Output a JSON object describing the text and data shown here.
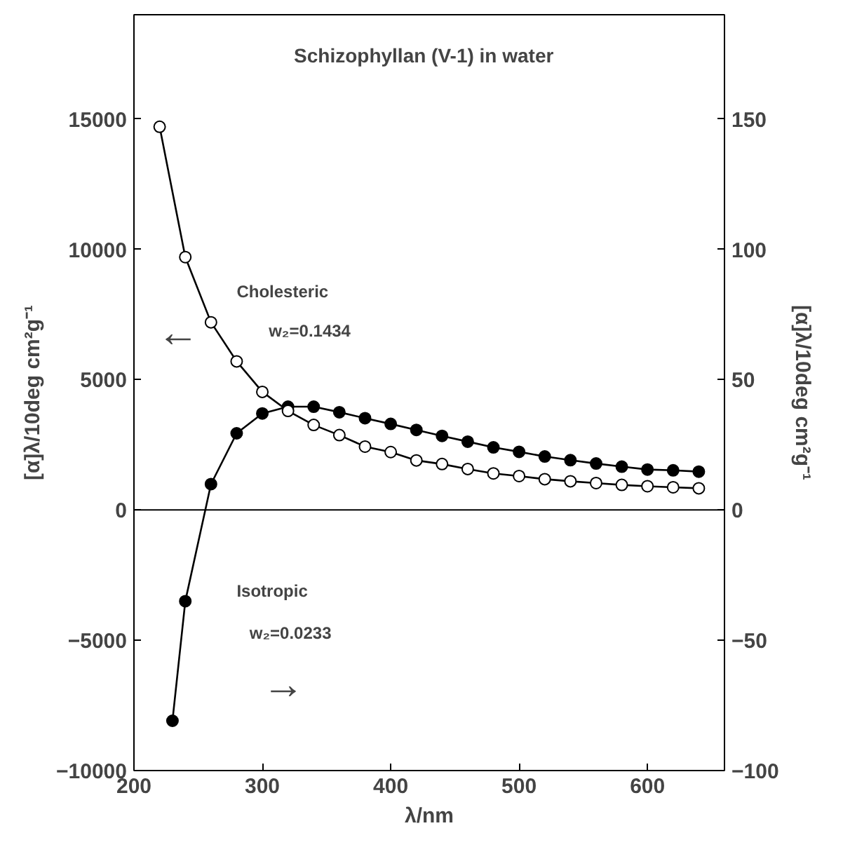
{
  "chart_data": {
    "type": "line",
    "title": "Schizophyllan (V-1)  in  water",
    "xlabel": "λ/nm",
    "ylabel": "[α]λ/10deg cm²g⁻¹",
    "y2label": "[α]λ/10deg cm²g⁻¹",
    "xlim": [
      200,
      660
    ],
    "xticks": [
      200,
      300,
      400,
      500,
      600
    ],
    "ylim": [
      -10000,
      19000
    ],
    "yticks": [
      -10000,
      -5000,
      0,
      5000,
      10000,
      15000
    ],
    "y2lim": [
      -100,
      190
    ],
    "y2ticks": [
      -100,
      -50,
      0,
      50,
      100,
      150
    ],
    "marker": "circle",
    "line_style": "solid",
    "grid": false,
    "ref_lines": [
      {
        "axis": "y",
        "value": 0,
        "label": null
      }
    ],
    "annotations": [
      "Cholesteric",
      "w₂=0.1434",
      "←",
      "Isotropic",
      "w₂=0.0233",
      "→"
    ],
    "series": [
      {
        "color": "#000000",
        "x": [
          220,
          240,
          260,
          280,
          300,
          320,
          340,
          360,
          380,
          400,
          420,
          440,
          460,
          480,
          500,
          520,
          540,
          560,
          580,
          600,
          620,
          640
        ],
        "values": [
          14700,
          9700,
          7200,
          5700,
          4530,
          3800,
          3260,
          2870,
          2430,
          2220,
          1900,
          1760,
          1570,
          1400,
          1300,
          1180,
          1100,
          1030,
          960,
          910,
          870,
          830
        ]
      },
      {
        "color": "#000000",
        "axis": "y2",
        "x": [
          230,
          240,
          260,
          280,
          300,
          320,
          340,
          360,
          380,
          400,
          420,
          440,
          460,
          480,
          500,
          520,
          540,
          560,
          580,
          600,
          620,
          640
        ],
        "values": [
          -80.9,
          -35,
          9.9,
          29.4,
          37,
          39.6,
          39.6,
          37.5,
          35.2,
          33,
          30.7,
          28.4,
          26.2,
          24,
          22.3,
          20.5,
          19.1,
          17.8,
          16.6,
          15.5,
          15.2,
          14.7
        ]
      }
    ]
  }
}
